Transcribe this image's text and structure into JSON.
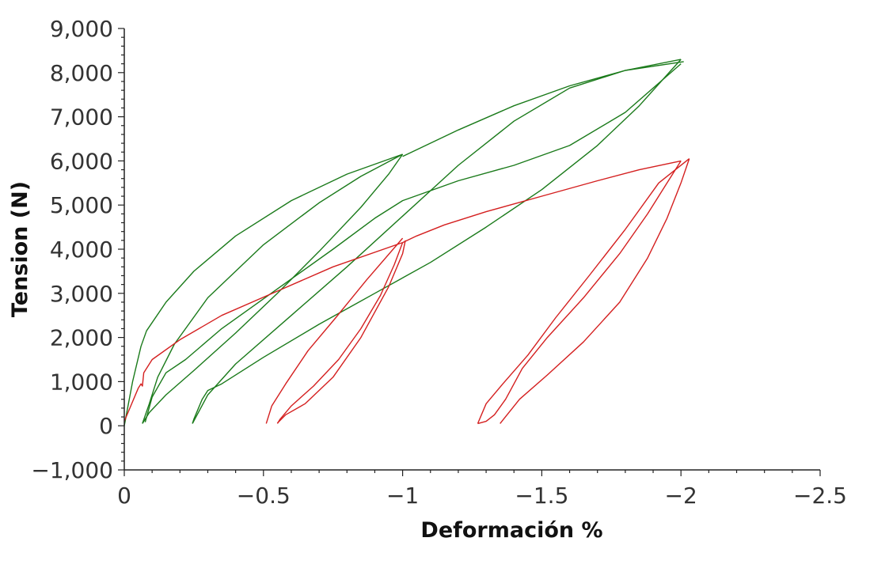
{
  "chart_data": {
    "type": "line",
    "title": "",
    "xlabel": "Deformación %",
    "ylabel": "Tension (N)",
    "xlim": [
      0,
      -2.5
    ],
    "ylim": [
      -1000,
      9000
    ],
    "x_ticks": [
      {
        "value": 0,
        "label": "0"
      },
      {
        "value": -0.5,
        "label": "−0.5"
      },
      {
        "value": -1,
        "label": "−1"
      },
      {
        "value": -1.5,
        "label": "−1.5"
      },
      {
        "value": -2,
        "label": "−2"
      },
      {
        "value": -2.5,
        "label": "−2.5"
      }
    ],
    "y_ticks": [
      {
        "value": -1000,
        "label": "−1,000"
      },
      {
        "value": 0,
        "label": "0"
      },
      {
        "value": 1000,
        "label": "1,000"
      },
      {
        "value": 2000,
        "label": "2,000"
      },
      {
        "value": 3000,
        "label": "3,000"
      },
      {
        "value": 4000,
        "label": "4,000"
      },
      {
        "value": 5000,
        "label": "5,000"
      },
      {
        "value": 6000,
        "label": "6,000"
      },
      {
        "value": 7000,
        "label": "7,000"
      },
      {
        "value": 8000,
        "label": "8,000"
      },
      {
        "value": 9000,
        "label": "9,000"
      }
    ],
    "grid": false,
    "legend": "none",
    "series": [
      {
        "color": "#1a7a1a",
        "segments": [
          [
            [
              0,
              0
            ],
            [
              -0.03,
              1000
            ],
            [
              -0.06,
              1800
            ],
            [
              -0.08,
              2150
            ],
            [
              -0.15,
              2800
            ],
            [
              -0.25,
              3500
            ],
            [
              -0.4,
              4300
            ],
            [
              -0.6,
              5100
            ],
            [
              -0.8,
              5700
            ],
            [
              -1,
              6150
            ]
          ],
          [
            [
              -1,
              6150
            ],
            [
              -0.95,
              5700
            ],
            [
              -0.85,
              4950
            ],
            [
              -0.7,
              3950
            ],
            [
              -0.55,
              3000
            ],
            [
              -0.4,
              2100
            ],
            [
              -0.25,
              1250
            ],
            [
              -0.15,
              700
            ],
            [
              -0.09,
              300
            ],
            [
              -0.065,
              50
            ]
          ],
          [
            [
              -0.065,
              50
            ],
            [
              -0.09,
              500
            ],
            [
              -0.12,
              1100
            ],
            [
              -0.18,
              1850
            ],
            [
              -0.3,
              2900
            ],
            [
              -0.5,
              4100
            ],
            [
              -0.7,
              5050
            ],
            [
              -0.85,
              5650
            ],
            [
              -1,
              6150
            ]
          ],
          [
            [
              -1,
              6100
            ],
            [
              -1.2,
              6700
            ],
            [
              -1.4,
              7250
            ],
            [
              -1.6,
              7700
            ],
            [
              -1.8,
              8050
            ],
            [
              -2,
              8300
            ]
          ],
          [
            [
              -2,
              8300
            ],
            [
              -1.95,
              7950
            ],
            [
              -1.85,
              7250
            ],
            [
              -1.7,
              6350
            ],
            [
              -1.5,
              5350
            ],
            [
              -1.3,
              4500
            ],
            [
              -1.1,
              3700
            ],
            [
              -0.9,
              3000
            ],
            [
              -0.7,
              2300
            ],
            [
              -0.5,
              1550
            ],
            [
              -0.35,
              950
            ],
            [
              -0.3,
              800
            ],
            [
              -0.28,
              600
            ],
            [
              -0.25,
              150
            ],
            [
              -0.245,
              50
            ]
          ],
          [
            [
              -0.245,
              50
            ],
            [
              -0.3,
              700
            ],
            [
              -0.4,
              1400
            ],
            [
              -0.6,
              2500
            ],
            [
              -0.8,
              3600
            ],
            [
              -1,
              4750
            ],
            [
              -1.2,
              5900
            ],
            [
              -1.4,
              6900
            ],
            [
              -1.6,
              7650
            ],
            [
              -1.8,
              8050
            ],
            [
              -2.01,
              8250
            ]
          ],
          [
            [
              -0.075,
              80
            ],
            [
              -0.1,
              650
            ],
            [
              -0.15,
              1200
            ],
            [
              -0.22,
              1500
            ],
            [
              -0.35,
              2200
            ],
            [
              -0.55,
              3100
            ],
            [
              -0.75,
              4000
            ],
            [
              -0.9,
              4700
            ],
            [
              -1,
              5100
            ],
            [
              -1.2,
              5550
            ],
            [
              -1.4,
              5900
            ],
            [
              -1.6,
              6350
            ],
            [
              -1.8,
              7100
            ],
            [
              -2,
              8200
            ]
          ]
        ]
      },
      {
        "color": "#d41f1f",
        "segments": [
          [
            [
              0,
              100
            ],
            [
              -0.05,
              850
            ],
            [
              -0.06,
              950
            ],
            [
              -0.065,
              900
            ],
            [
              -0.07,
              1200
            ],
            [
              -0.1,
              1500
            ],
            [
              -0.2,
              1950
            ],
            [
              -0.35,
              2500
            ],
            [
              -0.55,
              3050
            ],
            [
              -0.75,
              3600
            ],
            [
              -1,
              4150
            ]
          ],
          [
            [
              -1,
              4150
            ],
            [
              -0.97,
              3650
            ],
            [
              -0.92,
              2950
            ],
            [
              -0.85,
              2200
            ],
            [
              -0.77,
              1500
            ],
            [
              -0.68,
              900
            ],
            [
              -0.6,
              450
            ],
            [
              -0.56,
              150
            ],
            [
              -0.55,
              50
            ]
          ],
          [
            [
              -0.51,
              50
            ],
            [
              -0.53,
              450
            ],
            [
              -0.58,
              950
            ],
            [
              -0.66,
              1700
            ],
            [
              -0.76,
              2450
            ],
            [
              -0.87,
              3300
            ],
            [
              -1,
              4250
            ]
          ],
          [
            [
              -0.55,
              60
            ],
            [
              -0.58,
              250
            ],
            [
              -0.65,
              500
            ],
            [
              -0.75,
              1100
            ],
            [
              -0.85,
              2000
            ],
            [
              -0.95,
              3150
            ],
            [
              -1,
              3900
            ],
            [
              -1.01,
              4200
            ]
          ],
          [
            [
              -1,
              4150
            ],
            [
              -1.05,
              4300
            ],
            [
              -1.15,
              4550
            ],
            [
              -1.3,
              4850
            ],
            [
              -1.5,
              5200
            ],
            [
              -1.7,
              5550
            ],
            [
              -1.85,
              5800
            ],
            [
              -2,
              6000
            ]
          ],
          [
            [
              -2,
              6000
            ],
            [
              -1.95,
              5500
            ],
            [
              -1.88,
              4800
            ],
            [
              -1.78,
              3900
            ],
            [
              -1.65,
              2900
            ],
            [
              -1.52,
              2000
            ],
            [
              -1.43,
              1300
            ],
            [
              -1.37,
              600
            ],
            [
              -1.33,
              250
            ],
            [
              -1.3,
              100
            ],
            [
              -1.27,
              50
            ]
          ],
          [
            [
              -1.27,
              50
            ],
            [
              -1.3,
              500
            ],
            [
              -1.36,
              950
            ],
            [
              -1.45,
              1600
            ],
            [
              -1.55,
              2450
            ],
            [
              -1.67,
              3400
            ],
            [
              -1.8,
              4450
            ],
            [
              -1.92,
              5500
            ],
            [
              -2.03,
              6050
            ]
          ],
          [
            [
              -2.03,
              6050
            ],
            [
              -2.0,
              5500
            ],
            [
              -1.95,
              4700
            ],
            [
              -1.88,
              3800
            ],
            [
              -1.78,
              2800
            ],
            [
              -1.65,
              1900
            ],
            [
              -1.52,
              1150
            ],
            [
              -1.42,
              600
            ],
            [
              -1.35,
              50
            ]
          ]
        ]
      }
    ]
  }
}
